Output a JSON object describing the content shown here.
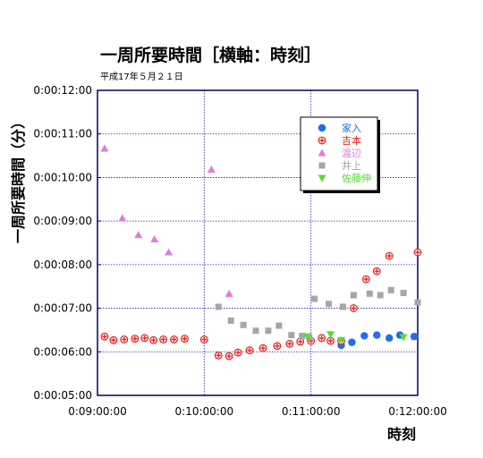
{
  "chart_data": {
    "type": "scatter",
    "title": "一周所要時間［横軸：時刻］",
    "subtitle": "平成17年５月２１日",
    "xlabel": "時刻",
    "ylabel": "一周所要時間（分）",
    "x_unit": "seconds since midnight",
    "xlim": [
      32400,
      43200
    ],
    "ylim": [
      300,
      720
    ],
    "x_ticks": [
      {
        "value": 32400,
        "label": "0:09:00:00"
      },
      {
        "value": 36000,
        "label": "0:10:00:00"
      },
      {
        "value": 39600,
        "label": "0:11:00:00"
      },
      {
        "value": 43200,
        "label": "0:12:00:00"
      }
    ],
    "y_ticks": [
      {
        "value": 300,
        "label": "0:00:05:00"
      },
      {
        "value": 360,
        "label": "0:00:06:00"
      },
      {
        "value": 420,
        "label": "0:00:07:00"
      },
      {
        "value": 480,
        "label": "0:00:08:00"
      },
      {
        "value": 540,
        "label": "0:00:09:00"
      },
      {
        "value": 600,
        "label": "0:00:10:00"
      },
      {
        "value": 660,
        "label": "0:00:11:00"
      },
      {
        "value": 720,
        "label": "0:00:12:00"
      }
    ],
    "grid": true,
    "legend_position": "top-right",
    "series": [
      {
        "name": "家入",
        "marker": "circle",
        "color": "#1f6fe8",
        "points": [
          [
            32640,
            381
          ],
          [
            32940,
            376
          ],
          [
            33300,
            377
          ],
          [
            33660,
            378
          ],
          [
            33990,
            379
          ],
          [
            34290,
            376
          ],
          [
            34620,
            377
          ],
          [
            34980,
            377
          ],
          [
            35340,
            378
          ],
          [
            36000,
            377
          ],
          [
            36480,
            355
          ],
          [
            36840,
            354
          ],
          [
            37140,
            359
          ],
          [
            37530,
            362
          ],
          [
            37980,
            365
          ],
          [
            38460,
            368
          ],
          [
            38880,
            371
          ],
          [
            39240,
            374
          ],
          [
            39600,
            375
          ],
          [
            39960,
            379
          ],
          [
            40260,
            375
          ],
          [
            40620,
            369
          ],
          [
            40980,
            373
          ],
          [
            41400,
            382
          ],
          [
            41820,
            383
          ],
          [
            42240,
            379
          ],
          [
            42600,
            383
          ],
          [
            43080,
            381
          ]
        ]
      },
      {
        "name": "吉本",
        "marker": "cross",
        "color": "#e8201c",
        "points": [
          [
            32640,
            381
          ],
          [
            32940,
            376
          ],
          [
            33300,
            377
          ],
          [
            33660,
            378
          ],
          [
            33990,
            379
          ],
          [
            34290,
            376
          ],
          [
            34620,
            377
          ],
          [
            34980,
            377
          ],
          [
            35340,
            378
          ],
          [
            36000,
            377
          ],
          [
            36480,
            355
          ],
          [
            36840,
            354
          ],
          [
            37140,
            359
          ],
          [
            37530,
            362
          ],
          [
            37980,
            365
          ],
          [
            38460,
            368
          ],
          [
            38880,
            371
          ],
          [
            39240,
            374
          ],
          [
            39600,
            375
          ],
          [
            39960,
            379
          ],
          [
            40260,
            375
          ],
          [
            40620,
            375
          ],
          [
            41040,
            420
          ],
          [
            41460,
            460
          ],
          [
            41820,
            471
          ],
          [
            42240,
            492
          ],
          [
            43200,
            497
          ]
        ]
      },
      {
        "name": "渡辺",
        "marker": "triangle-up",
        "color": "#e07be0",
        "points": [
          [
            32640,
            640
          ],
          [
            33240,
            544
          ],
          [
            33780,
            521
          ],
          [
            34320,
            515
          ],
          [
            34800,
            497
          ],
          [
            36240,
            611
          ],
          [
            36840,
            440
          ]
        ]
      },
      {
        "name": "井上",
        "marker": "square",
        "color": "#a6a6a6",
        "points": [
          [
            36480,
            422
          ],
          [
            36900,
            403
          ],
          [
            37320,
            397
          ],
          [
            37740,
            389
          ],
          [
            38160,
            389
          ],
          [
            38520,
            396
          ],
          [
            38940,
            383
          ],
          [
            39300,
            382
          ],
          [
            39540,
            380
          ],
          [
            39720,
            433
          ],
          [
            40200,
            426
          ],
          [
            40680,
            422
          ],
          [
            41040,
            438
          ],
          [
            41580,
            440
          ],
          [
            41940,
            438
          ],
          [
            42300,
            445
          ],
          [
            42720,
            441
          ],
          [
            43200,
            428
          ]
        ]
      },
      {
        "name": "佐藤伸",
        "marker": "triangle-down",
        "color": "#55dd33",
        "points": [
          [
            39480,
            381
          ],
          [
            40260,
            384
          ],
          [
            40620,
            376
          ],
          [
            42720,
            380
          ]
        ]
      }
    ]
  }
}
